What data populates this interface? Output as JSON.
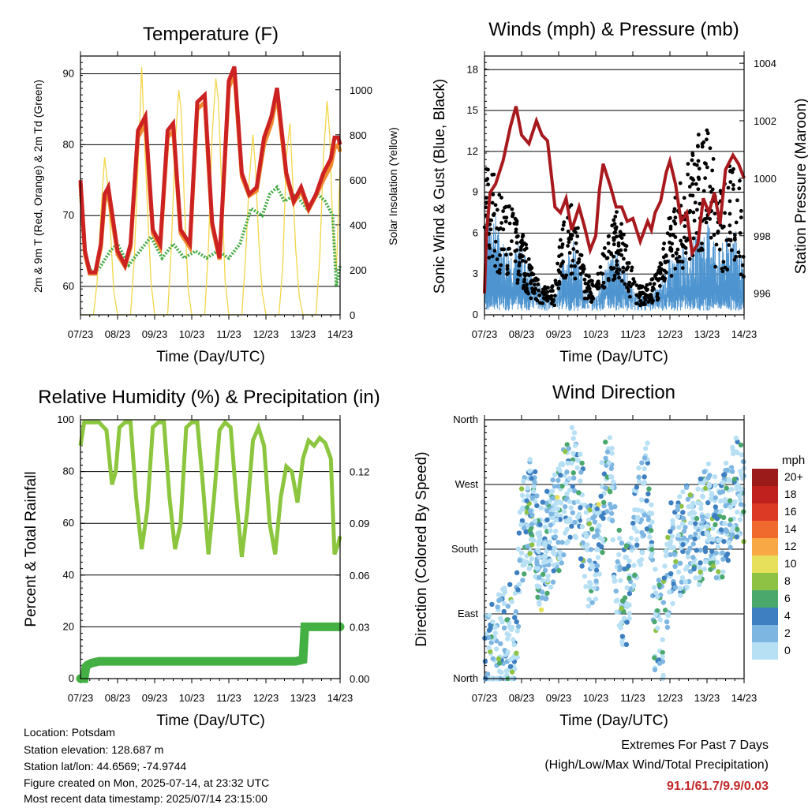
{
  "info": {
    "location": "Location: Potsdam",
    "elevation": "Station elevation: 128.687 m",
    "latlon": "Station lat/lon: 44.6569; -74.9744",
    "created": "Figure created on Mon, 2025-07-14, at 23:32 UTC",
    "recent": "Most recent data timestamp: 2025/07/14 23:15:00"
  },
  "extremes": {
    "title": "Extremes For Past 7 Days",
    "subtitle": "(High/Low/Max Wind/Total Precipitation)",
    "value": "91.1/61.7/9.9/0.03"
  },
  "colors": {
    "temp_red": "#cc2222",
    "temp_orange": "#f08a30",
    "dewpoint_green": "#44aa44",
    "insolation_yellow": "#f2d64a",
    "pressure_maroon": "#a8191e",
    "wind_blue": "#4e95d0",
    "gust_black": "#000000",
    "rh_green": "#8cc63f",
    "precip_green": "#44b044"
  },
  "wind_colorbar": {
    "unit": "mph",
    "labels": [
      "20+",
      "18",
      "16",
      "14",
      "12",
      "10",
      "8",
      "6",
      "4",
      "2",
      "0"
    ],
    "colors": [
      "#9b1b1b",
      "#c0211f",
      "#dd3a26",
      "#ef6a2c",
      "#f8a845",
      "#e6e05a",
      "#8dc244",
      "#4aa86c",
      "#3d7fc0",
      "#7eb6e2",
      "#b8e0f5"
    ]
  },
  "chart_data": [
    {
      "type": "line",
      "title": "Temperature (F)",
      "xlabel": "Time (Day/UTC)",
      "ylabel": "2m & 9m T (Red, Orange) & 2m Td (Green)",
      "y2label": "Solar Insolation (Yellow)",
      "x_ticks": [
        "07/23",
        "08/23",
        "09/23",
        "10/23",
        "11/23",
        "12/23",
        "13/23",
        "14/23"
      ],
      "xlim": [
        0,
        7
      ],
      "ylim": [
        56,
        92.5
      ],
      "y_ticks": [
        60,
        70,
        80,
        90
      ],
      "y2lim": [
        0,
        1150
      ],
      "y2_ticks": [
        0,
        200,
        400,
        600,
        800,
        1000
      ],
      "grid": "horizontal",
      "series": [
        {
          "name": "2m T",
          "axis": "left",
          "x": [
            0,
            0.12,
            0.25,
            0.4,
            0.55,
            0.65,
            0.75,
            1.0,
            1.2,
            1.35,
            1.55,
            1.75,
            1.95,
            2.15,
            2.35,
            2.5,
            2.7,
            2.95,
            3.15,
            3.35,
            3.55,
            3.75,
            4.0,
            4.15,
            4.35,
            4.55,
            4.75,
            4.95,
            5.15,
            5.3,
            5.55,
            5.75,
            5.95,
            6.15,
            6.35,
            6.55,
            6.75,
            6.85,
            6.95,
            7.0
          ],
          "y": [
            75,
            65,
            62,
            62,
            66,
            73,
            74,
            65,
            63,
            66,
            82,
            84,
            68,
            66,
            82,
            83,
            68,
            66,
            86,
            87,
            69,
            64,
            89,
            91,
            76,
            73,
            74,
            81,
            84,
            88,
            76,
            72,
            74,
            71,
            73,
            76,
            78,
            81,
            81,
            80
          ]
        },
        {
          "name": "9m T",
          "axis": "left",
          "x": [
            0,
            0.12,
            0.25,
            0.4,
            0.55,
            0.65,
            0.75,
            1.0,
            1.2,
            1.35,
            1.55,
            1.75,
            1.95,
            2.15,
            2.35,
            2.5,
            2.7,
            2.95,
            3.15,
            3.35,
            3.55,
            3.75,
            4.0,
            4.15,
            4.35,
            4.55,
            4.75,
            4.95,
            5.15,
            5.3,
            5.55,
            5.75,
            5.95,
            6.15,
            6.35,
            6.55,
            6.75,
            6.85,
            6.95,
            7.0
          ],
          "y": [
            74.5,
            64.5,
            61.8,
            61.8,
            65.5,
            72,
            73,
            64.5,
            62.8,
            65.5,
            81,
            83,
            67.5,
            65.5,
            81,
            82,
            67.5,
            65.5,
            85,
            86,
            68.5,
            63.8,
            88,
            90,
            75.5,
            72.8,
            73.5,
            80,
            83,
            87,
            75.5,
            71.8,
            73.5,
            70.8,
            72.8,
            75,
            77,
            79.5,
            80,
            79
          ]
        },
        {
          "name": "2m Td",
          "axis": "left",
          "x": [
            0,
            0.15,
            0.3,
            0.5,
            0.8,
            1.0,
            1.3,
            1.6,
            1.9,
            2.2,
            2.5,
            2.8,
            3.1,
            3.4,
            3.7,
            4.0,
            4.3,
            4.6,
            4.9,
            5.1,
            5.3,
            5.5,
            5.8,
            6.1,
            6.4,
            6.6,
            6.8,
            6.9,
            7.0
          ],
          "y": [
            73,
            64,
            62,
            62.5,
            65,
            66,
            63,
            65,
            67,
            64,
            66,
            64,
            65,
            64,
            65,
            64,
            66,
            71,
            70,
            73,
            74,
            72,
            73,
            71,
            73,
            72,
            70,
            60,
            63
          ]
        },
        {
          "name": "Solar Insolation",
          "axis": "right",
          "x": [
            0,
            0.35,
            0.45,
            0.55,
            0.65,
            0.72,
            0.8,
            0.9,
            1.0,
            1.35,
            1.45,
            1.55,
            1.65,
            1.72,
            1.8,
            1.9,
            2.0,
            2.35,
            2.45,
            2.55,
            2.65,
            2.72,
            2.8,
            2.9,
            3.0,
            3.35,
            3.45,
            3.55,
            3.65,
            3.72,
            3.8,
            3.9,
            4.0,
            4.35,
            4.45,
            4.55,
            4.65,
            4.72,
            4.8,
            4.9,
            5.0,
            5.35,
            5.45,
            5.55,
            5.65,
            5.72,
            5.8,
            5.9,
            6.0,
            6.35,
            6.45,
            6.55,
            6.65,
            6.72,
            6.8,
            6.9,
            7.0
          ],
          "y": [
            0,
            0,
            150,
            450,
            700,
            600,
            400,
            100,
            0,
            0,
            250,
            650,
            1100,
            800,
            500,
            150,
            0,
            0,
            300,
            750,
            1000,
            900,
            500,
            120,
            0,
            0,
            300,
            800,
            1050,
            950,
            600,
            150,
            0,
            0,
            250,
            600,
            800,
            650,
            350,
            100,
            0,
            0,
            200,
            700,
            850,
            600,
            300,
            80,
            0,
            0,
            250,
            700,
            950,
            800,
            400,
            200,
            650
          ]
        }
      ]
    },
    {
      "type": "scatter",
      "title": "Winds (mph) & Pressure (mb)",
      "xlabel": "Time (Day/UTC)",
      "ylabel": "Sonic Wind & Gust (Blue, Black)",
      "y2label": "Station Pressure (Maroon)",
      "x_ticks": [
        "07/23",
        "08/23",
        "09/23",
        "10/23",
        "11/23",
        "12/23",
        "13/23",
        "14/23"
      ],
      "xlim": [
        0,
        7
      ],
      "ylim": [
        0,
        19
      ],
      "y_ticks": [
        0,
        3,
        6,
        9,
        12,
        15,
        18
      ],
      "y2lim": [
        995.25,
        1004.25
      ],
      "y2_ticks": [
        996,
        998,
        1000,
        1002,
        1004
      ],
      "grid": "horizontal",
      "series": [
        {
          "name": "Sonic Wind",
          "type": "area-band",
          "x": [
            0,
            0.2,
            0.5,
            0.8,
            1.0,
            1.3,
            1.6,
            1.9,
            2.1,
            2.4,
            2.7,
            3.0,
            3.3,
            3.6,
            3.9,
            4.1,
            4.4,
            4.7,
            5.0,
            5.3,
            5.6,
            5.9,
            6.1,
            6.3,
            6.5,
            6.7,
            6.9,
            7.0
          ],
          "y": [
            5,
            6,
            4,
            3.5,
            4,
            2,
            1.5,
            1,
            3,
            4,
            1.5,
            1,
            3,
            3.5,
            2,
            1,
            1,
            1.5,
            3,
            3.5,
            4,
            4.5,
            5,
            3.5,
            4,
            5,
            3.5,
            2
          ]
        },
        {
          "name": "Gust",
          "type": "scatter-band",
          "x": [
            0,
            0.2,
            0.5,
            0.8,
            1.0,
            1.3,
            1.6,
            1.9,
            2.1,
            2.4,
            2.7,
            3.0,
            3.3,
            3.6,
            3.9,
            4.1,
            4.4,
            4.7,
            5.0,
            5.3,
            5.6,
            5.9,
            6.1,
            6.3,
            6.5,
            6.7,
            6.9,
            7.0
          ],
          "y": [
            11,
            10,
            8,
            7,
            6,
            3,
            2,
            2,
            7,
            8,
            3,
            2,
            6,
            7,
            4,
            2,
            2,
            3,
            7,
            9,
            11,
            13,
            12,
            8,
            9,
            11,
            9,
            5
          ]
        },
        {
          "name": "Station Pressure",
          "type": "line",
          "axis": "right",
          "x": [
            0,
            0.05,
            0.15,
            0.3,
            0.5,
            0.7,
            0.85,
            1.0,
            1.2,
            1.4,
            1.55,
            1.7,
            1.9,
            2.05,
            2.2,
            2.35,
            2.55,
            2.7,
            2.85,
            3.0,
            3.1,
            3.2,
            3.4,
            3.55,
            3.7,
            3.85,
            4.0,
            4.2,
            4.4,
            4.5,
            4.6,
            4.75,
            4.9,
            5.0,
            5.15,
            5.3,
            5.45,
            5.6,
            5.75,
            5.9,
            6.05,
            6.2,
            6.35,
            6.5,
            6.7,
            6.85,
            7.0
          ],
          "y": [
            996,
            998,
            999.5,
            999.8,
            1000.6,
            1001.8,
            1002.5,
            1001.5,
            1001.2,
            1002,
            1001.5,
            1001.3,
            999,
            998.8,
            999.3,
            998.2,
            999,
            998.3,
            997.5,
            998,
            999.6,
            1000.5,
            999.7,
            999,
            999,
            998.5,
            998.6,
            997.8,
            998.5,
            998.2,
            998.8,
            999.2,
            1000.2,
            1000.6,
            999.8,
            998.5,
            998.8,
            997.4,
            997.7,
            999.3,
            998.8,
            999.5,
            998.4,
            1000.3,
            1000.8,
            1000.5,
            1000
          ]
        }
      ]
    },
    {
      "type": "line",
      "title": "Relative Humidity (%) & Precipitation (in)",
      "xlabel": "Time (Day/UTC)",
      "ylabel": "Percent & Total Rainfall",
      "x_ticks": [
        "07/23",
        "08/23",
        "09/23",
        "10/23",
        "11/23",
        "12/23",
        "13/23",
        "14/23"
      ],
      "xlim": [
        0,
        7
      ],
      "ylim": [
        0,
        100
      ],
      "y_ticks": [
        0,
        20,
        40,
        60,
        80,
        100
      ],
      "y2lim": [
        0,
        0.15
      ],
      "y2_ticks": [
        "0.00",
        "0.03",
        "0.06",
        "0.09",
        "0.12"
      ],
      "grid": "horizontal",
      "series": [
        {
          "name": "Relative Humidity",
          "axis": "left",
          "x": [
            0,
            0.1,
            0.3,
            0.5,
            0.7,
            0.85,
            0.95,
            1.05,
            1.2,
            1.35,
            1.5,
            1.65,
            1.8,
            1.95,
            2.1,
            2.25,
            2.4,
            2.55,
            2.7,
            2.85,
            3.0,
            3.15,
            3.3,
            3.45,
            3.6,
            3.75,
            3.9,
            4.05,
            4.2,
            4.35,
            4.5,
            4.65,
            4.8,
            4.95,
            5.1,
            5.25,
            5.4,
            5.55,
            5.7,
            5.85,
            6.0,
            6.15,
            6.3,
            6.45,
            6.6,
            6.75,
            6.85,
            6.95,
            7.0
          ],
          "y": [
            90,
            99,
            99,
            99,
            96,
            75,
            80,
            97,
            99,
            99,
            70,
            50,
            65,
            97,
            99,
            99,
            70,
            50,
            60,
            97,
            99,
            99,
            75,
            48,
            70,
            96,
            99,
            97,
            70,
            47,
            65,
            92,
            97,
            90,
            60,
            48,
            70,
            82,
            80,
            68,
            85,
            92,
            90,
            93,
            91,
            85,
            48,
            52,
            55
          ]
        },
        {
          "name": "Total Precipitation",
          "axis": "right",
          "x": [
            0,
            0.1,
            0.15,
            0.2,
            0.3,
            0.5,
            1.0,
            2.0,
            3.0,
            4.0,
            5.0,
            5.8,
            6.0,
            6.05,
            6.1,
            6.3,
            7.0
          ],
          "y": [
            0.0,
            0.0,
            0.007,
            0.008,
            0.009,
            0.01,
            0.01,
            0.01,
            0.01,
            0.01,
            0.01,
            0.01,
            0.011,
            0.03,
            0.03,
            0.03,
            0.03
          ]
        }
      ]
    },
    {
      "type": "scatter",
      "title": "Wind Direction",
      "xlabel": "Time (Day/UTC)",
      "ylabel": "Direction (Colored By Speed)",
      "x_ticks": [
        "07/23",
        "08/23",
        "09/23",
        "10/23",
        "11/23",
        "12/23",
        "13/23",
        "14/23"
      ],
      "xlim": [
        0,
        7
      ],
      "ylim": [
        0,
        360
      ],
      "y_ticks": [
        "North",
        "East",
        "South",
        "West",
        "North"
      ],
      "grid": "horizontal",
      "series": [
        {
          "name": "Wind Direction",
          "type": "scatter-band",
          "x": [
            0,
            0.1,
            0.2,
            0.3,
            0.5,
            0.7,
            0.8,
            1.0,
            1.3,
            1.5,
            1.7,
            2.0,
            2.2,
            2.4,
            2.6,
            2.8,
            3.0,
            3.2,
            3.4,
            3.6,
            3.8,
            4.0,
            4.2,
            4.4,
            4.6,
            4.8,
            5.0,
            5.2,
            5.4,
            5.6,
            5.8,
            6.0,
            6.2,
            6.4,
            6.6,
            6.8,
            7.0
          ],
          "y": [
            20,
            15,
            30,
            40,
            50,
            60,
            25,
            200,
            240,
            160,
            190,
            220,
            260,
            280,
            240,
            160,
            180,
            250,
            270,
            140,
            110,
            180,
            230,
            270,
            80,
            60,
            170,
            180,
            200,
            190,
            200,
            230,
            210,
            210,
            240,
            270,
            250
          ]
        }
      ]
    }
  ]
}
